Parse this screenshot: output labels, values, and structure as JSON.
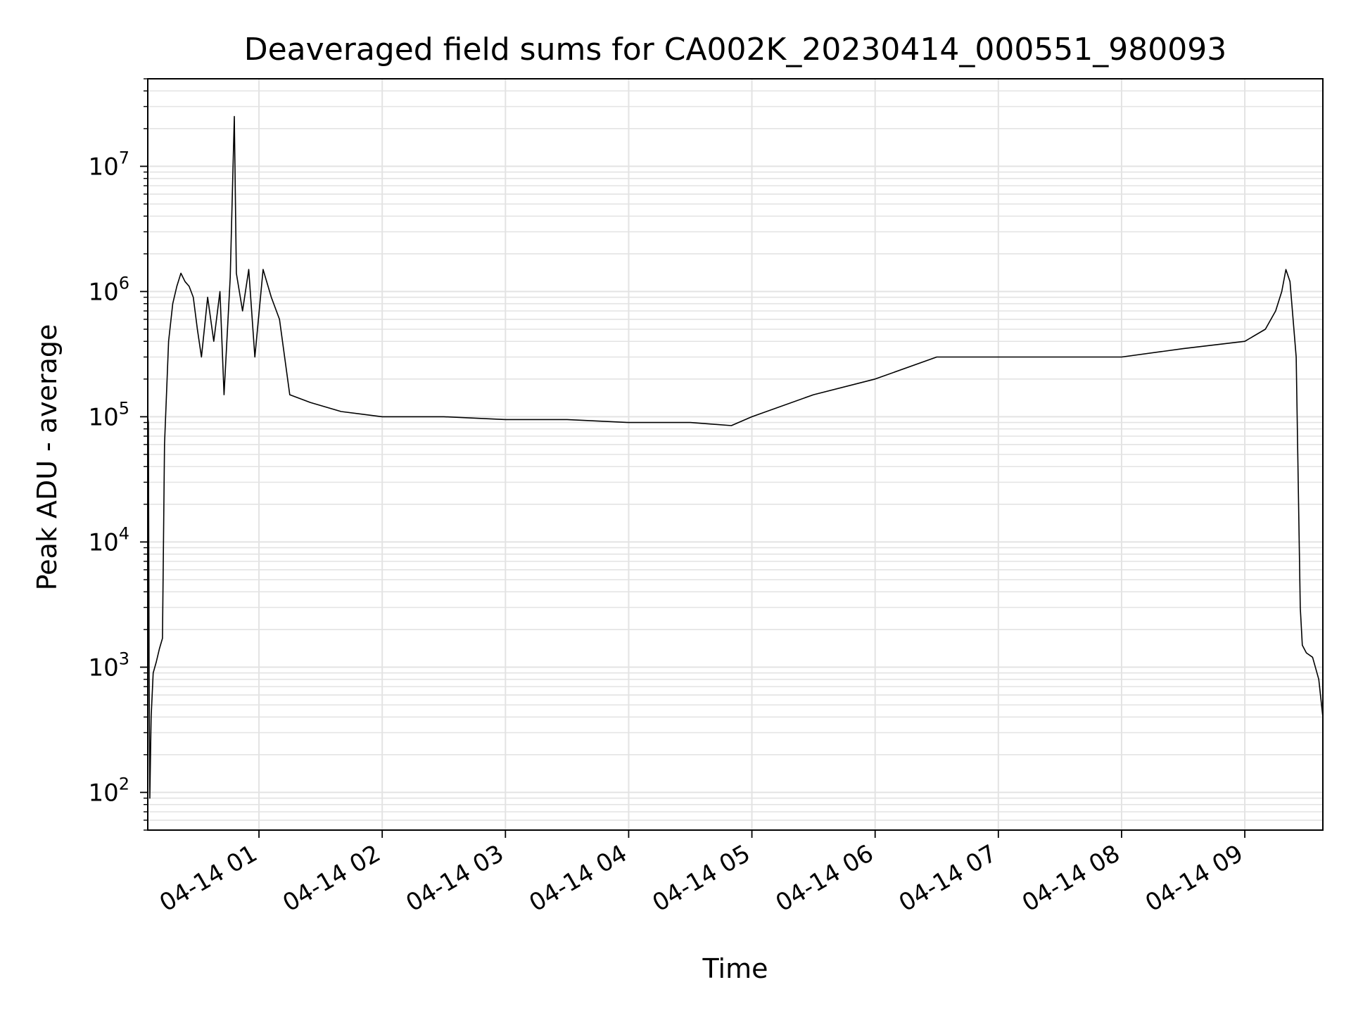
{
  "chart_data": {
    "type": "line",
    "title": "Deaveraged field sums for CA002K_20230414_000551_980093",
    "xlabel": "Time",
    "ylabel": "Peak ADU - average",
    "y_scale": "log",
    "ylim": [
      50,
      50000000
    ],
    "xlim": [
      "2023-04-14 00:05:51",
      "2023-04-14 09:38:00"
    ],
    "grid": true,
    "line_color": "#000000",
    "grid_color": "#e3e3e3",
    "x_ticks": [
      {
        "value": "2023-04-14 01:00",
        "label": "04-14 01"
      },
      {
        "value": "2023-04-14 02:00",
        "label": "04-14 02"
      },
      {
        "value": "2023-04-14 03:00",
        "label": "04-14 03"
      },
      {
        "value": "2023-04-14 04:00",
        "label": "04-14 04"
      },
      {
        "value": "2023-04-14 05:00",
        "label": "04-14 05"
      },
      {
        "value": "2023-04-14 06:00",
        "label": "04-14 06"
      },
      {
        "value": "2023-04-14 07:00",
        "label": "04-14 07"
      },
      {
        "value": "2023-04-14 08:00",
        "label": "04-14 08"
      },
      {
        "value": "2023-04-14 09:00",
        "label": "04-14 09"
      }
    ],
    "y_ticks": [
      {
        "value": 100,
        "base": "10",
        "exp": "2"
      },
      {
        "value": 1000,
        "base": "10",
        "exp": "3"
      },
      {
        "value": 10000,
        "base": "10",
        "exp": "4"
      },
      {
        "value": 100000,
        "base": "10",
        "exp": "5"
      },
      {
        "value": 1000000,
        "base": "10",
        "exp": "6"
      },
      {
        "value": 10000000,
        "base": "10",
        "exp": "7"
      }
    ],
    "series": [
      {
        "points": [
          [
            "00:05:51",
            100000
          ],
          [
            "00:06:10",
            90000
          ],
          [
            "00:06:30",
            1000
          ],
          [
            "00:06:50",
            90
          ],
          [
            "00:07:30",
            400
          ],
          [
            "00:08:30",
            900
          ],
          [
            "00:10:00",
            1100
          ],
          [
            "00:11:30",
            1400
          ],
          [
            "00:13:00",
            1700
          ],
          [
            "00:14:00",
            60000
          ],
          [
            "00:16:00",
            400000
          ],
          [
            "00:18:00",
            800000
          ],
          [
            "00:20:00",
            1100000
          ],
          [
            "00:22:00",
            1400000
          ],
          [
            "00:24:00",
            1200000
          ],
          [
            "00:26:00",
            1100000
          ],
          [
            "00:28:00",
            900000
          ],
          [
            "00:30:00",
            500000
          ],
          [
            "00:32:00",
            300000
          ],
          [
            "00:35:00",
            900000
          ],
          [
            "00:38:00",
            400000
          ],
          [
            "00:41:00",
            1000000
          ],
          [
            "00:43:00",
            150000
          ],
          [
            "00:46:00",
            1300000
          ],
          [
            "00:48:00",
            25000000
          ],
          [
            "00:49:00",
            1400000
          ],
          [
            "00:52:00",
            700000
          ],
          [
            "00:55:00",
            1500000
          ],
          [
            "00:58:00",
            300000
          ],
          [
            "01:02:00",
            1500000
          ],
          [
            "01:06:00",
            900000
          ],
          [
            "01:10:00",
            600000
          ],
          [
            "01:15:00",
            150000
          ],
          [
            "01:25:00",
            130000
          ],
          [
            "01:40:00",
            110000
          ],
          [
            "02:00:00",
            100000
          ],
          [
            "02:30:00",
            100000
          ],
          [
            "03:00:00",
            95000
          ],
          [
            "03:30:00",
            95000
          ],
          [
            "04:00:00",
            90000
          ],
          [
            "04:30:00",
            90000
          ],
          [
            "04:50:00",
            85000
          ],
          [
            "05:00:00",
            100000
          ],
          [
            "05:30:00",
            150000
          ],
          [
            "06:00:00",
            200000
          ],
          [
            "06:30:00",
            300000
          ],
          [
            "07:00:00",
            300000
          ],
          [
            "07:30:00",
            300000
          ],
          [
            "08:00:00",
            300000
          ],
          [
            "08:30:00",
            350000
          ],
          [
            "09:00:00",
            400000
          ],
          [
            "09:10:00",
            500000
          ],
          [
            "09:15:00",
            700000
          ],
          [
            "09:18:00",
            1000000
          ],
          [
            "09:20:00",
            1500000
          ],
          [
            "09:22:00",
            1200000
          ],
          [
            "09:25:00",
            300000
          ],
          [
            "09:27:00",
            3000
          ],
          [
            "09:28:00",
            1500
          ],
          [
            "09:30:00",
            1300
          ],
          [
            "09:33:00",
            1200
          ],
          [
            "09:36:00",
            800
          ],
          [
            "09:38:00",
            400
          ]
        ]
      }
    ]
  }
}
